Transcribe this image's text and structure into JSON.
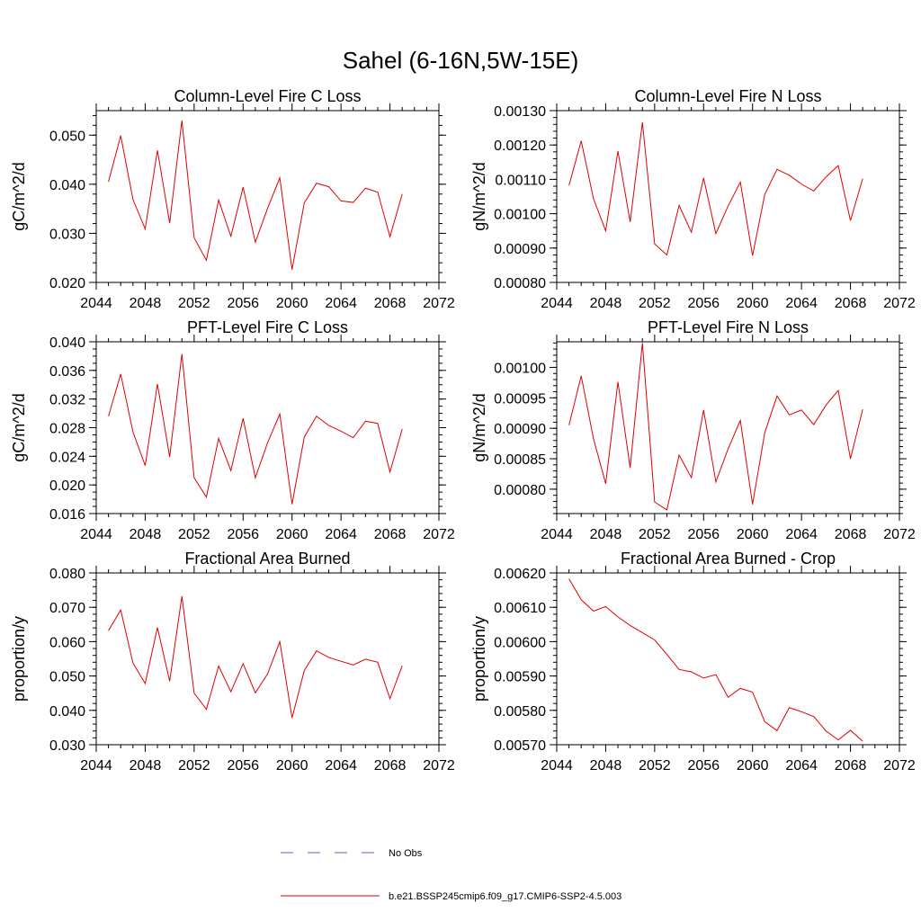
{
  "figure": {
    "title": "Sahel (6-16N,5W-15E)",
    "legend": [
      {
        "label": "No Obs",
        "color": "#5b5bd6",
        "style": "dashed"
      },
      {
        "label": "b.e21.BSSP245cmip6.f09_g17.CMIP6-SSP2-4.5.003",
        "color": "#e00000",
        "style": "solid"
      }
    ]
  },
  "chart_data": [
    {
      "type": "line",
      "title": "Column-Level Fire C Loss",
      "ylabel": "gC/m^2/d",
      "xlabel": "",
      "xlim": [
        2044,
        2072
      ],
      "xticks": [
        2044,
        2048,
        2052,
        2056,
        2060,
        2064,
        2068,
        2072
      ],
      "ylim": [
        0.02,
        0.055
      ],
      "yticks": [
        0.02,
        0.03,
        0.04,
        0.05
      ],
      "ytick_labels": [
        "0.020",
        "0.030",
        "0.040",
        "0.050"
      ],
      "yminor": 0.002,
      "series": [
        {
          "name": "b.e21.BSSP245cmip6.f09_g17.CMIP6-SSP2-4.5.003",
          "color": "#e00000",
          "x": [
            2045,
            2046,
            2047,
            2048,
            2049,
            2050,
            2051,
            2052,
            2053,
            2054,
            2055,
            2056,
            2057,
            2058,
            2059,
            2060,
            2061,
            2062,
            2063,
            2064,
            2065,
            2066,
            2067,
            2068,
            2069
          ],
          "values": [
            0.0405,
            0.0499,
            0.0369,
            0.0309,
            0.0469,
            0.0321,
            0.053,
            0.0291,
            0.0245,
            0.0368,
            0.0294,
            0.0394,
            0.0282,
            0.0351,
            0.0413,
            0.0226,
            0.0362,
            0.0402,
            0.0395,
            0.0366,
            0.0363,
            0.0392,
            0.0384,
            0.0293,
            0.038
          ]
        }
      ]
    },
    {
      "type": "line",
      "title": "Column-Level Fire N Loss",
      "ylabel": "gN/m^2/d",
      "xlabel": "",
      "xlim": [
        2044,
        2072
      ],
      "xticks": [
        2044,
        2048,
        2052,
        2056,
        2060,
        2064,
        2068,
        2072
      ],
      "ylim": [
        0.0008,
        0.0013
      ],
      "yticks": [
        0.0008,
        0.0009,
        0.001,
        0.0011,
        0.0012,
        0.0013
      ],
      "ytick_labels": [
        "0.00080",
        "0.00090",
        "0.00100",
        "0.00110",
        "0.00120",
        "0.00130"
      ],
      "yminor": 2e-05,
      "series": [
        {
          "name": "b.e21.BSSP245cmip6.f09_g17.CMIP6-SSP2-4.5.003",
          "color": "#e00000",
          "x": [
            2045,
            2046,
            2047,
            2048,
            2049,
            2050,
            2051,
            2052,
            2053,
            2054,
            2055,
            2056,
            2057,
            2058,
            2059,
            2060,
            2061,
            2062,
            2063,
            2064,
            2065,
            2066,
            2067,
            2068,
            2069
          ],
          "values": [
            0.001082,
            0.001212,
            0.001044,
            0.00095,
            0.001182,
            0.000976,
            0.001266,
            0.000912,
            0.00088,
            0.001024,
            0.000946,
            0.001104,
            0.000942,
            0.001022,
            0.001092,
            0.000878,
            0.001056,
            0.001129,
            0.001112,
            0.001086,
            0.001066,
            0.001107,
            0.00114,
            0.00098,
            0.001102
          ]
        }
      ]
    },
    {
      "type": "line",
      "title": "PFT-Level Fire C Loss",
      "ylabel": "gC/m^2/d",
      "xlabel": "",
      "xlim": [
        2044,
        2072
      ],
      "xticks": [
        2044,
        2048,
        2052,
        2056,
        2060,
        2064,
        2068,
        2072
      ],
      "ylim": [
        0.016,
        0.04
      ],
      "yticks": [
        0.016,
        0.02,
        0.024,
        0.028,
        0.032,
        0.036,
        0.04
      ],
      "ytick_labels": [
        "0.016",
        "0.020",
        "0.024",
        "0.028",
        "0.032",
        "0.036",
        "0.040"
      ],
      "yminor": 0.001,
      "series": [
        {
          "name": "b.e21.BSSP245cmip6.f09_g17.CMIP6-SSP2-4.5.003",
          "color": "#e00000",
          "x": [
            2045,
            2046,
            2047,
            2048,
            2049,
            2050,
            2051,
            2052,
            2053,
            2054,
            2055,
            2056,
            2057,
            2058,
            2059,
            2060,
            2061,
            2062,
            2063,
            2064,
            2065,
            2066,
            2067,
            2068,
            2069
          ],
          "values": [
            0.0296,
            0.0355,
            0.0274,
            0.0227,
            0.0341,
            0.0239,
            0.0383,
            0.021,
            0.0183,
            0.0265,
            0.022,
            0.0293,
            0.021,
            0.0259,
            0.0299,
            0.0173,
            0.0267,
            0.0296,
            0.0283,
            0.0275,
            0.0266,
            0.0289,
            0.0286,
            0.0218,
            0.0278
          ]
        }
      ]
    },
    {
      "type": "line",
      "title": "PFT-Level Fire N Loss",
      "ylabel": "gN/m^2/d",
      "xlabel": "",
      "xlim": [
        2044,
        2072
      ],
      "xticks": [
        2044,
        2048,
        2052,
        2056,
        2060,
        2064,
        2068,
        2072
      ],
      "ylim": [
        0.00076,
        0.001042
      ],
      "yticks": [
        0.0008,
        0.00085,
        0.0009,
        0.00095,
        0.001
      ],
      "ytick_labels": [
        "0.00080",
        "0.00085",
        "0.00090",
        "0.00095",
        "0.00100"
      ],
      "yminor": 1e-05,
      "series": [
        {
          "name": "b.e21.BSSP245cmip6.f09_g17.CMIP6-SSP2-4.5.003",
          "color": "#e00000",
          "x": [
            2045,
            2046,
            2047,
            2048,
            2049,
            2050,
            2051,
            2052,
            2053,
            2054,
            2055,
            2056,
            2057,
            2058,
            2059,
            2060,
            2061,
            2062,
            2063,
            2064,
            2065,
            2066,
            2067,
            2068,
            2069
          ],
          "values": [
            0.000905,
            0.000986,
            0.000883,
            0.000809,
            0.000976,
            0.000835,
            0.00104,
            0.000779,
            0.000766,
            0.000856,
            0.000819,
            0.00093,
            0.000812,
            0.000866,
            0.000913,
            0.000775,
            0.000893,
            0.000953,
            0.000922,
            0.00093,
            0.000906,
            0.000938,
            0.000962,
            0.00085,
            0.000931
          ]
        }
      ]
    },
    {
      "type": "line",
      "title": "Fractional Area Burned",
      "ylabel": "proportion/y",
      "xlabel": "",
      "xlim": [
        2044,
        2072
      ],
      "xticks": [
        2044,
        2048,
        2052,
        2056,
        2060,
        2064,
        2068,
        2072
      ],
      "ylim": [
        0.03,
        0.08
      ],
      "yticks": [
        0.03,
        0.04,
        0.05,
        0.06,
        0.07,
        0.08
      ],
      "ytick_labels": [
        "0.030",
        "0.040",
        "0.050",
        "0.060",
        "0.070",
        "0.080"
      ],
      "yminor": 0.002,
      "series": [
        {
          "name": "b.e21.BSSP245cmip6.f09_g17.CMIP6-SSP2-4.5.003",
          "color": "#e00000",
          "x": [
            2045,
            2046,
            2047,
            2048,
            2049,
            2050,
            2051,
            2052,
            2053,
            2054,
            2055,
            2056,
            2057,
            2058,
            2059,
            2060,
            2061,
            2062,
            2063,
            2064,
            2065,
            2066,
            2067,
            2068,
            2069
          ],
          "values": [
            0.0632,
            0.0692,
            0.0538,
            0.0478,
            0.0641,
            0.0485,
            0.0732,
            0.045,
            0.0403,
            0.0529,
            0.0454,
            0.0536,
            0.0451,
            0.0506,
            0.06,
            0.0378,
            0.0516,
            0.0573,
            0.0554,
            0.0543,
            0.0532,
            0.0549,
            0.054,
            0.0434,
            0.053
          ]
        }
      ]
    },
    {
      "type": "line",
      "title": "Fractional Area Burned - Crop",
      "ylabel": "proportion/y",
      "xlabel": "",
      "xlim": [
        2044,
        2072
      ],
      "xticks": [
        2044,
        2048,
        2052,
        2056,
        2060,
        2064,
        2068,
        2072
      ],
      "ylim": [
        0.0057,
        0.0062
      ],
      "yticks": [
        0.0057,
        0.0058,
        0.0059,
        0.006,
        0.0061,
        0.0062
      ],
      "ytick_labels": [
        "0.00570",
        "0.00580",
        "0.00590",
        "0.00600",
        "0.00610",
        "0.00620"
      ],
      "yminor": 2e-05,
      "series": [
        {
          "name": "b.e21.BSSP245cmip6.f09_g17.CMIP6-SSP2-4.5.003",
          "color": "#e00000",
          "x": [
            2045,
            2046,
            2047,
            2048,
            2049,
            2050,
            2051,
            2052,
            2053,
            2054,
            2055,
            2056,
            2057,
            2058,
            2059,
            2060,
            2061,
            2062,
            2063,
            2064,
            2065,
            2066,
            2067,
            2068,
            2069
          ],
          "values": [
            0.006183,
            0.006122,
            0.006089,
            0.006102,
            0.006072,
            0.006047,
            0.006026,
            0.006005,
            0.005963,
            0.005919,
            0.005912,
            0.005894,
            0.005904,
            0.005838,
            0.005864,
            0.005853,
            0.005767,
            0.005741,
            0.005808,
            0.005796,
            0.005782,
            0.00574,
            0.005714,
            0.005742,
            0.00571
          ]
        }
      ]
    }
  ]
}
